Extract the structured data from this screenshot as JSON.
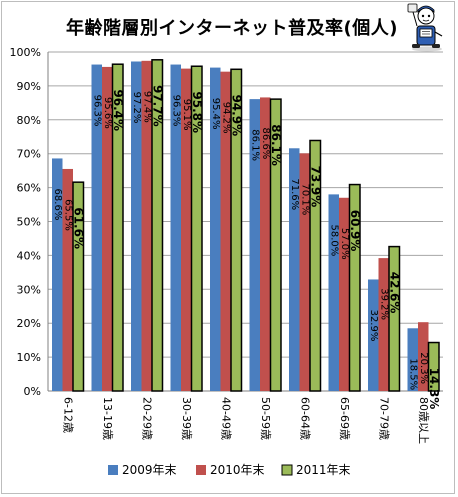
{
  "chart_data": {
    "type": "bar",
    "title": "年齢階層別インターネット普及率(個人)",
    "xlabel": "",
    "ylabel": "",
    "ylim": [
      0,
      100
    ],
    "yticks": [
      "0%",
      "10%",
      "20%",
      "30%",
      "40%",
      "50%",
      "60%",
      "70%",
      "80%",
      "90%",
      "100%"
    ],
    "categories": [
      "6-12歳",
      "13-19歳",
      "20-29歳",
      "30-39歳",
      "40-49歳",
      "50-59歳",
      "60-64歳",
      "65-69歳",
      "70-79歳",
      "80歳以上"
    ],
    "series": [
      {
        "name": "2009年末",
        "color": "#4a7ebf",
        "values": [
          68.6,
          96.3,
          97.2,
          96.3,
          95.4,
          86.1,
          71.6,
          58.0,
          32.9,
          18.5
        ],
        "labels": [
          "68.6%",
          "96.3%",
          "97.2%",
          "96.3%",
          "95.4%",
          "86.1%",
          "71.6%",
          "58.0%",
          "32.9%",
          "18.5%"
        ]
      },
      {
        "name": "2010年末",
        "color": "#c0504d",
        "values": [
          65.5,
          95.6,
          97.4,
          95.1,
          94.2,
          86.6,
          70.1,
          57.0,
          39.2,
          20.3
        ],
        "labels": [
          "65.5%",
          "95.6%",
          "97.4%",
          "95.1%",
          "94.2%",
          "86.6%",
          "70.1%",
          "57.0%",
          "39.2%",
          "20.3%"
        ]
      },
      {
        "name": "2011年末",
        "color": "#9bbb59",
        "values": [
          61.6,
          96.4,
          97.7,
          95.8,
          94.9,
          86.1,
          73.9,
          60.9,
          42.6,
          14.3
        ],
        "labels": [
          "61.6%",
          "96.4%",
          "97.7%",
          "95.8%",
          "94.9%",
          "86.1%",
          "73.9%",
          "60.9%",
          "42.6%",
          "14.3%"
        ]
      }
    ],
    "grid": true,
    "legend": "bottom"
  },
  "mascot": {
    "icon": "reporter-mascot-icon"
  }
}
